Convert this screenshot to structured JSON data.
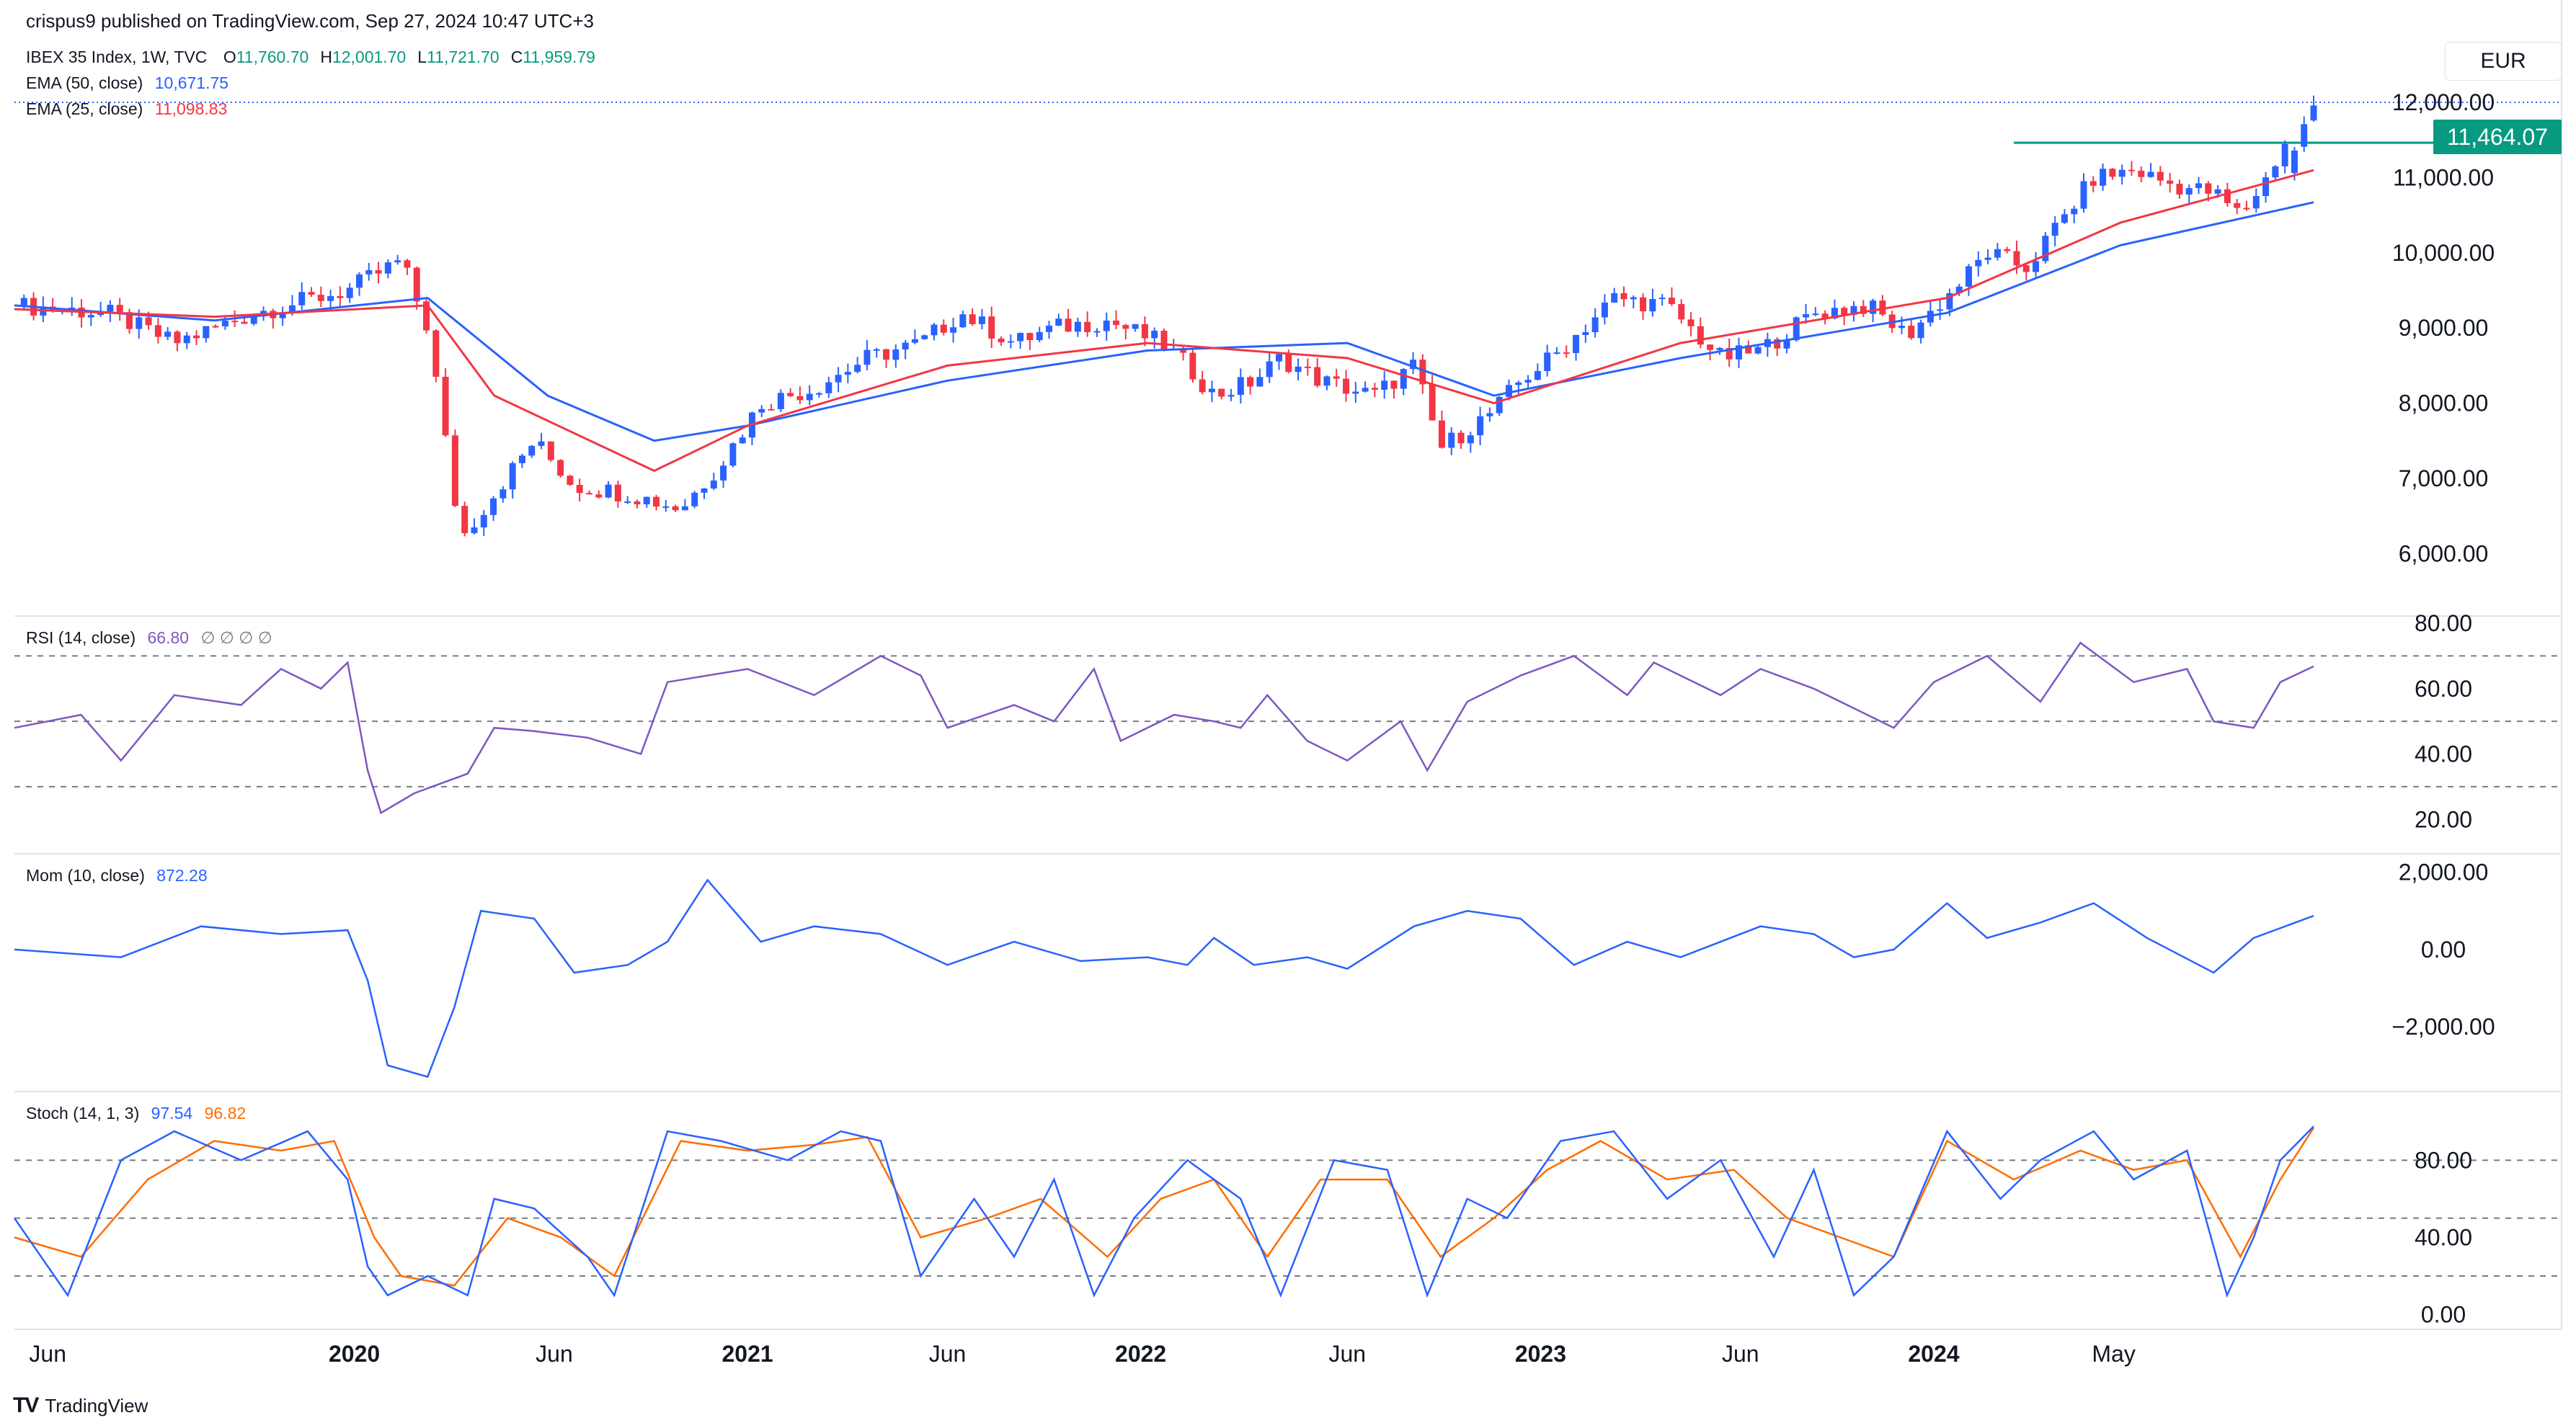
{
  "header": {
    "published": "crispus9 published on TradingView.com, Sep 27, 2024 10:47 UTC+3"
  },
  "legend": {
    "symbol": "IBEX 35 Index, 1W, TVC",
    "ohlc": [
      {
        "k": "O",
        "v": "11,760.70"
      },
      {
        "k": "H",
        "v": "12,001.70"
      },
      {
        "k": "L",
        "v": "11,721.70"
      },
      {
        "k": "C",
        "v": "11,959.79"
      }
    ],
    "ema50_label": "EMA (50, close)",
    "ema50_value": "10,671.75",
    "ema25_label": "EMA (25, close)",
    "ema25_value": "11,098.83",
    "rsi_label": "RSI (14, close)",
    "rsi_value": "66.80",
    "rsi_extra": "∅ ∅ ∅ ∅",
    "mom_label": "Mom (10, close)",
    "mom_value": "872.28",
    "stoch_label": "Stoch (14, 1, 3)",
    "stoch_k": "97.54",
    "stoch_d": "96.82"
  },
  "currency": "EUR",
  "last_price_label": "11,464.07",
  "brand": "TradingView",
  "colors": {
    "up": "#2962ff",
    "down": "#f23645",
    "ema50": "#2962ff",
    "ema25": "#f23645",
    "rsi": "#7e57c2",
    "mom": "#2962ff",
    "stoch_k": "#2962ff",
    "stoch_d": "#ff6d00",
    "resistance": "#089981"
  },
  "chart_data": {
    "type": "candlestick",
    "interval": "1W",
    "x_axis_labels": [
      "Jun",
      "2020",
      "Jun",
      "2021",
      "Jun",
      "2022",
      "Jun",
      "2023",
      "Jun",
      "2024",
      "May"
    ],
    "price_axis_ticks": [
      "12,000.00",
      "11,000.00",
      "10,000.00",
      "9,000.00",
      "8,000.00",
      "7,000.00",
      "6,000.00"
    ],
    "price_axis_values": [
      12000,
      11000,
      10000,
      9000,
      8000,
      7000,
      6000
    ],
    "price_range": [
      5600,
      12500
    ],
    "close_path_points": [
      [
        0,
        9300
      ],
      [
        14,
        9200
      ],
      [
        24,
        8800
      ],
      [
        36,
        9200
      ],
      [
        50,
        9500
      ],
      [
        58,
        9900
      ],
      [
        62,
        9000
      ],
      [
        67,
        6200
      ],
      [
        72,
        6800
      ],
      [
        78,
        7500
      ],
      [
        84,
        6900
      ],
      [
        92,
        6800
      ],
      [
        100,
        6600
      ],
      [
        106,
        7200
      ],
      [
        112,
        8000
      ],
      [
        120,
        8200
      ],
      [
        128,
        8600
      ],
      [
        136,
        8800
      ],
      [
        142,
        9200
      ],
      [
        150,
        8800
      ],
      [
        156,
        9000
      ],
      [
        164,
        9100
      ],
      [
        172,
        8800
      ],
      [
        176,
        8500
      ],
      [
        180,
        8100
      ],
      [
        186,
        8300
      ],
      [
        190,
        8600
      ],
      [
        196,
        8300
      ],
      [
        204,
        8100
      ],
      [
        210,
        8500
      ],
      [
        214,
        7400
      ],
      [
        222,
        7900
      ],
      [
        226,
        8300
      ],
      [
        232,
        8700
      ],
      [
        240,
        9400
      ],
      [
        248,
        9300
      ],
      [
        256,
        8600
      ],
      [
        262,
        8700
      ],
      [
        270,
        9200
      ],
      [
        278,
        9300
      ],
      [
        284,
        8900
      ],
      [
        292,
        9600
      ],
      [
        296,
        10000
      ],
      [
        302,
        9800
      ],
      [
        306,
        10300
      ],
      [
        312,
        11000
      ],
      [
        318,
        11100
      ],
      [
        324,
        10900
      ],
      [
        330,
        10800
      ],
      [
        334,
        10500
      ],
      [
        338,
        11000
      ],
      [
        342,
        11700
      ],
      [
        345,
        11960
      ]
    ],
    "highlight_last_candles": {
      "count": 3,
      "open": 11760.7,
      "high": 12001.7,
      "low": 11721.7,
      "close": 11959.79
    },
    "resistance_level": 11464.07,
    "ema50_points": [
      [
        0,
        9300
      ],
      [
        30,
        9100
      ],
      [
        62,
        9400
      ],
      [
        80,
        8100
      ],
      [
        96,
        7500
      ],
      [
        110,
        7700
      ],
      [
        140,
        8300
      ],
      [
        170,
        8700
      ],
      [
        200,
        8800
      ],
      [
        222,
        8100
      ],
      [
        250,
        8600
      ],
      [
        290,
        9200
      ],
      [
        316,
        10100
      ],
      [
        345,
        10671.75
      ]
    ],
    "ema25_points": [
      [
        0,
        9250
      ],
      [
        30,
        9150
      ],
      [
        62,
        9300
      ],
      [
        72,
        8100
      ],
      [
        96,
        7100
      ],
      [
        110,
        7700
      ],
      [
        140,
        8500
      ],
      [
        170,
        8800
      ],
      [
        200,
        8600
      ],
      [
        222,
        8000
      ],
      [
        250,
        8800
      ],
      [
        290,
        9400
      ],
      [
        316,
        10400
      ],
      [
        345,
        11098.83
      ]
    ],
    "rsi": {
      "range": [
        15,
        80
      ],
      "ticks": [
        "80.00",
        "60.00",
        "40.00",
        "20.00"
      ],
      "tick_values": [
        80,
        60,
        40,
        20
      ],
      "bands": [
        70,
        50,
        30
      ],
      "points": [
        [
          0,
          48
        ],
        [
          10,
          52
        ],
        [
          16,
          38
        ],
        [
          24,
          58
        ],
        [
          34,
          55
        ],
        [
          40,
          66
        ],
        [
          46,
          60
        ],
        [
          50,
          68
        ],
        [
          53,
          35
        ],
        [
          55,
          22
        ],
        [
          60,
          28
        ],
        [
          68,
          34
        ],
        [
          72,
          48
        ],
        [
          78,
          47
        ],
        [
          86,
          45
        ],
        [
          94,
          40
        ],
        [
          98,
          62
        ],
        [
          110,
          66
        ],
        [
          120,
          58
        ],
        [
          130,
          70
        ],
        [
          136,
          64
        ],
        [
          140,
          48
        ],
        [
          150,
          55
        ],
        [
          156,
          50
        ],
        [
          162,
          66
        ],
        [
          166,
          44
        ],
        [
          174,
          52
        ],
        [
          180,
          50
        ],
        [
          184,
          48
        ],
        [
          188,
          58
        ],
        [
          194,
          44
        ],
        [
          200,
          38
        ],
        [
          208,
          50
        ],
        [
          212,
          35
        ],
        [
          218,
          56
        ],
        [
          226,
          64
        ],
        [
          234,
          70
        ],
        [
          242,
          58
        ],
        [
          246,
          68
        ],
        [
          256,
          58
        ],
        [
          262,
          66
        ],
        [
          270,
          60
        ],
        [
          276,
          54
        ],
        [
          282,
          48
        ],
        [
          288,
          62
        ],
        [
          296,
          70
        ],
        [
          304,
          56
        ],
        [
          310,
          74
        ],
        [
          318,
          62
        ],
        [
          326,
          66
        ],
        [
          330,
          50
        ],
        [
          336,
          48
        ],
        [
          340,
          62
        ],
        [
          345,
          66.8
        ]
      ]
    },
    "momentum": {
      "range": [
        -3400,
        2200
      ],
      "ticks": [
        "2,000.00",
        "0.00",
        "−2,000.00"
      ],
      "tick_values": [
        2000,
        0,
        -2000
      ],
      "points": [
        [
          0,
          0
        ],
        [
          16,
          -200
        ],
        [
          28,
          600
        ],
        [
          40,
          400
        ],
        [
          50,
          500
        ],
        [
          53,
          -800
        ],
        [
          56,
          -3000
        ],
        [
          62,
          -3300
        ],
        [
          66,
          -1500
        ],
        [
          70,
          1000
        ],
        [
          78,
          800
        ],
        [
          84,
          -600
        ],
        [
          92,
          -400
        ],
        [
          98,
          200
        ],
        [
          104,
          1800
        ],
        [
          108,
          1000
        ],
        [
          112,
          200
        ],
        [
          120,
          600
        ],
        [
          130,
          400
        ],
        [
          140,
          -400
        ],
        [
          150,
          200
        ],
        [
          160,
          -300
        ],
        [
          170,
          -200
        ],
        [
          176,
          -400
        ],
        [
          180,
          300
        ],
        [
          186,
          -400
        ],
        [
          194,
          -200
        ],
        [
          200,
          -500
        ],
        [
          210,
          600
        ],
        [
          218,
          1000
        ],
        [
          226,
          800
        ],
        [
          234,
          -400
        ],
        [
          242,
          200
        ],
        [
          250,
          -200
        ],
        [
          262,
          600
        ],
        [
          270,
          400
        ],
        [
          276,
          -200
        ],
        [
          282,
          0
        ],
        [
          290,
          1200
        ],
        [
          296,
          300
        ],
        [
          304,
          700
        ],
        [
          312,
          1200
        ],
        [
          320,
          300
        ],
        [
          330,
          -600
        ],
        [
          336,
          300
        ],
        [
          345,
          872.28
        ]
      ]
    },
    "stochastic": {
      "range": [
        -5,
        110
      ],
      "ticks": [
        "80.00",
        "40.00",
        "0.00"
      ],
      "tick_values": [
        80,
        40,
        0
      ],
      "bands": [
        80,
        50,
        20
      ],
      "k_points": [
        [
          0,
          50
        ],
        [
          8,
          10
        ],
        [
          16,
          80
        ],
        [
          24,
          95
        ],
        [
          34,
          80
        ],
        [
          44,
          95
        ],
        [
          50,
          70
        ],
        [
          53,
          25
        ],
        [
          56,
          10
        ],
        [
          62,
          20
        ],
        [
          68,
          10
        ],
        [
          72,
          60
        ],
        [
          78,
          55
        ],
        [
          86,
          30
        ],
        [
          90,
          10
        ],
        [
          98,
          95
        ],
        [
          106,
          90
        ],
        [
          116,
          80
        ],
        [
          124,
          95
        ],
        [
          130,
          90
        ],
        [
          136,
          20
        ],
        [
          144,
          60
        ],
        [
          150,
          30
        ],
        [
          156,
          70
        ],
        [
          162,
          10
        ],
        [
          168,
          50
        ],
        [
          176,
          80
        ],
        [
          184,
          60
        ],
        [
          190,
          10
        ],
        [
          198,
          80
        ],
        [
          206,
          75
        ],
        [
          212,
          10
        ],
        [
          218,
          60
        ],
        [
          224,
          50
        ],
        [
          232,
          90
        ],
        [
          240,
          95
        ],
        [
          248,
          60
        ],
        [
          256,
          80
        ],
        [
          264,
          30
        ],
        [
          270,
          75
        ],
        [
          276,
          10
        ],
        [
          282,
          30
        ],
        [
          290,
          95
        ],
        [
          298,
          60
        ],
        [
          304,
          80
        ],
        [
          312,
          95
        ],
        [
          318,
          70
        ],
        [
          326,
          85
        ],
        [
          332,
          10
        ],
        [
          336,
          40
        ],
        [
          340,
          80
        ],
        [
          345,
          97.54
        ]
      ],
      "d_points": [
        [
          0,
          40
        ],
        [
          10,
          30
        ],
        [
          20,
          70
        ],
        [
          30,
          90
        ],
        [
          40,
          85
        ],
        [
          48,
          90
        ],
        [
          54,
          40
        ],
        [
          58,
          20
        ],
        [
          66,
          15
        ],
        [
          74,
          50
        ],
        [
          82,
          40
        ],
        [
          90,
          20
        ],
        [
          100,
          90
        ],
        [
          110,
          85
        ],
        [
          120,
          88
        ],
        [
          128,
          92
        ],
        [
          136,
          40
        ],
        [
          146,
          50
        ],
        [
          154,
          60
        ],
        [
          164,
          30
        ],
        [
          172,
          60
        ],
        [
          180,
          70
        ],
        [
          188,
          30
        ],
        [
          196,
          70
        ],
        [
          206,
          70
        ],
        [
          214,
          30
        ],
        [
          222,
          50
        ],
        [
          230,
          75
        ],
        [
          238,
          90
        ],
        [
          248,
          70
        ],
        [
          258,
          75
        ],
        [
          266,
          50
        ],
        [
          274,
          40
        ],
        [
          282,
          30
        ],
        [
          290,
          90
        ],
        [
          300,
          70
        ],
        [
          310,
          85
        ],
        [
          318,
          75
        ],
        [
          326,
          80
        ],
        [
          334,
          30
        ],
        [
          340,
          70
        ],
        [
          345,
          96.82
        ]
      ]
    }
  }
}
